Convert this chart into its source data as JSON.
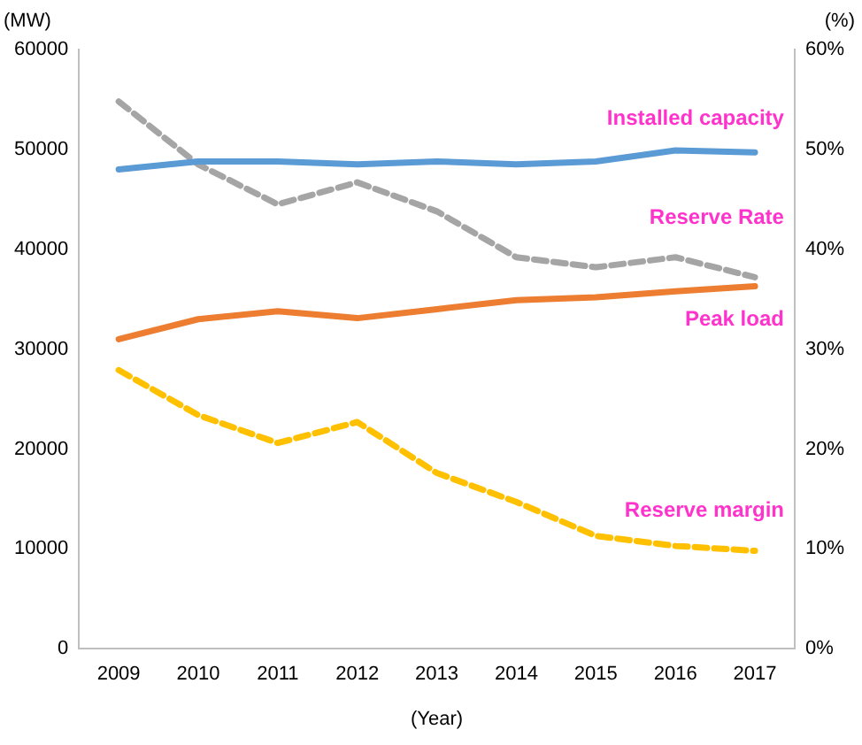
{
  "chart_data": {
    "type": "line",
    "categories": [
      "2009",
      "2010",
      "2011",
      "2012",
      "2013",
      "2014",
      "2015",
      "2016",
      "2017"
    ],
    "xlabel": "(Year)",
    "ylabel": "(MW)",
    "y2label": "(%)",
    "series": [
      {
        "name": "Installed capacity",
        "color": "#5b9bd5",
        "values": [
          48000,
          48800,
          48800,
          48500,
          48800,
          48500,
          48800,
          49900,
          49700
        ]
      },
      {
        "name": "Reserve Rate",
        "color": "#a5a5a5",
        "axis": "y2",
        "line_style": "dashed",
        "values": [
          54.8,
          48.5,
          44.5,
          46.7,
          43.8,
          39.2,
          38.2,
          39.2,
          37.2
        ]
      },
      {
        "name": "Peak load",
        "color": "#ed7d31",
        "values": [
          31000,
          33000,
          33800,
          33100,
          34000,
          34900,
          35200,
          35800,
          36300
        ]
      },
      {
        "name": "Reserve margin",
        "color": "#ffc000",
        "line_style": "dashed",
        "values": [
          27900,
          23400,
          20600,
          22700,
          17600,
          14700,
          11300,
          10300,
          9800
        ]
      }
    ],
    "ylim": [
      0,
      60000
    ],
    "yticks": [
      0,
      10000,
      20000,
      30000,
      40000,
      50000,
      60000
    ],
    "y2lim": [
      0,
      60
    ],
    "y2ticks": [
      {
        "value": 0,
        "label": "0%"
      },
      {
        "value": 10,
        "label": "10%"
      },
      {
        "value": 20,
        "label": "20%"
      },
      {
        "value": 30,
        "label": "30%"
      },
      {
        "value": 40,
        "label": "40%"
      },
      {
        "value": 50,
        "label": "50%"
      },
      {
        "value": 60,
        "label": "60%"
      }
    ],
    "grid": false,
    "legend": false,
    "marker": "none"
  }
}
